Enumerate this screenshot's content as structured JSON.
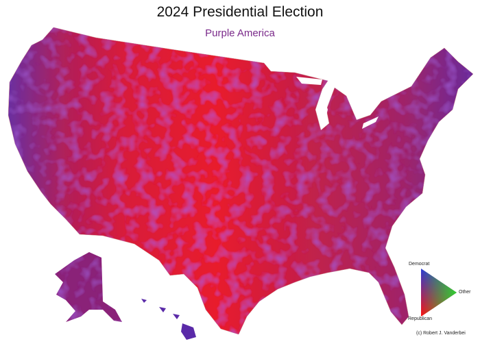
{
  "title": "2024 Presidential Election",
  "subtitle": "Purple America",
  "legend": {
    "top_label": "Democrat",
    "right_label": "Other",
    "bottom_label": "Republican",
    "colors": {
      "democrat": "#2a3bd8",
      "other": "#2fd02f",
      "republican": "#ff1010"
    }
  },
  "credit": "(c) Robert J. Vanderbei",
  "colors": {
    "red": "#e5192f",
    "purple": "#6a2a9a",
    "subtitle": "#7a2a8a"
  }
}
